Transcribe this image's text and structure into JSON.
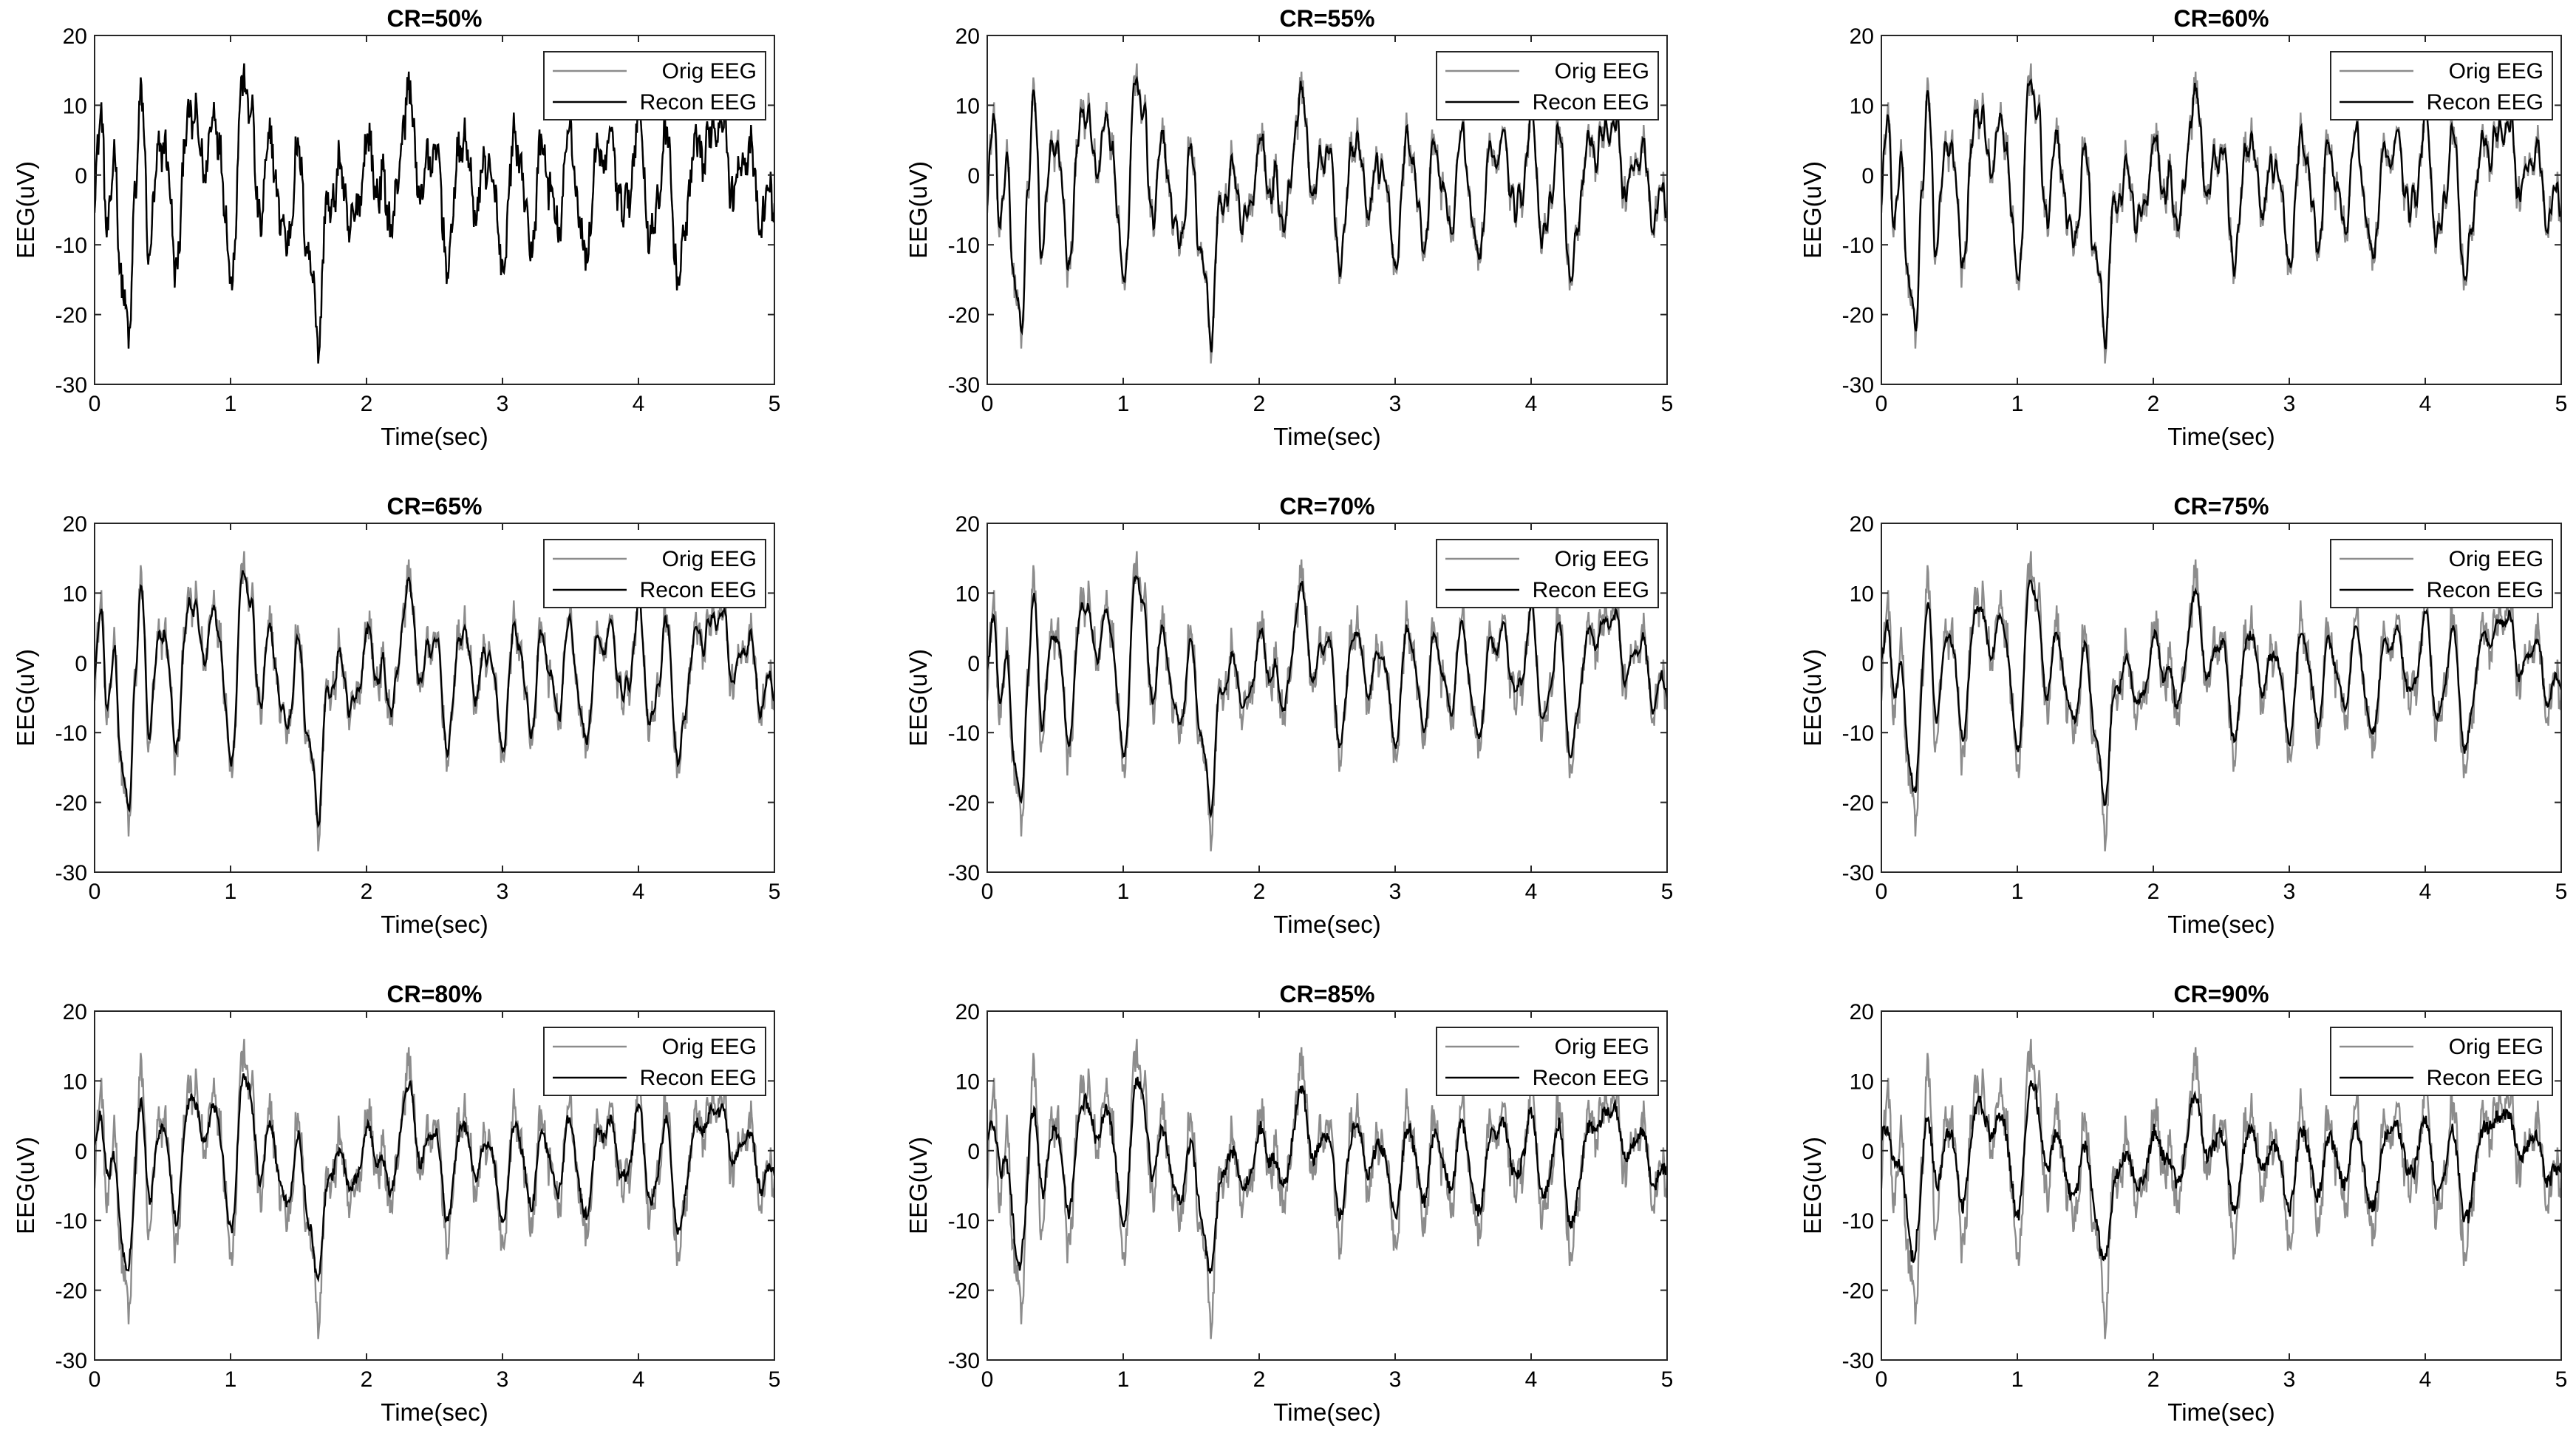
{
  "chart_data": [
    {
      "type": "line",
      "title": "CR=50%",
      "xlabel": "Time(sec)",
      "ylabel": "EEG(uV)",
      "xlim": [
        0,
        5
      ],
      "ylim": [
        -30,
        20
      ],
      "xticks": [
        "0",
        "1",
        "2",
        "3",
        "4",
        "5"
      ],
      "yticks": [
        "20",
        "10",
        "0",
        "-10",
        "-20",
        "-30"
      ],
      "legend": "top-right",
      "series": [
        {
          "name": "Orig EEG"
        },
        {
          "name": "Recon EEG"
        }
      ]
    },
    {
      "type": "line",
      "title": "CR=55%",
      "xlabel": "Time(sec)",
      "ylabel": "EEG(uV)",
      "xlim": [
        0,
        5
      ],
      "ylim": [
        -30,
        20
      ],
      "xticks": [
        "0",
        "1",
        "2",
        "3",
        "4",
        "5"
      ],
      "yticks": [
        "20",
        "10",
        "0",
        "-10",
        "-20",
        "-30"
      ],
      "legend": "top-right",
      "series": [
        {
          "name": "Orig EEG"
        },
        {
          "name": "Recon EEG"
        }
      ]
    },
    {
      "type": "line",
      "title": "CR=60%",
      "xlabel": "Time(sec)",
      "ylabel": "EEG(uV)",
      "xlim": [
        0,
        5
      ],
      "ylim": [
        -30,
        20
      ],
      "xticks": [
        "0",
        "1",
        "2",
        "3",
        "4",
        "5"
      ],
      "yticks": [
        "20",
        "10",
        "0",
        "-10",
        "-20",
        "-30"
      ],
      "legend": "top-right",
      "series": [
        {
          "name": "Orig EEG"
        },
        {
          "name": "Recon EEG"
        }
      ]
    },
    {
      "type": "line",
      "title": "CR=65%",
      "xlabel": "Time(sec)",
      "ylabel": "EEG(uV)",
      "xlim": [
        0,
        5
      ],
      "ylim": [
        -30,
        20
      ],
      "xticks": [
        "0",
        "1",
        "2",
        "3",
        "4",
        "5"
      ],
      "yticks": [
        "20",
        "10",
        "0",
        "-10",
        "-20",
        "-30"
      ],
      "legend": "top-right",
      "series": [
        {
          "name": "Orig EEG"
        },
        {
          "name": "Recon EEG"
        }
      ]
    },
    {
      "type": "line",
      "title": "CR=70%",
      "xlabel": "Time(sec)",
      "ylabel": "EEG(uV)",
      "xlim": [
        0,
        5
      ],
      "ylim": [
        -30,
        20
      ],
      "xticks": [
        "0",
        "1",
        "2",
        "3",
        "4",
        "5"
      ],
      "yticks": [
        "20",
        "10",
        "0",
        "-10",
        "-20",
        "-30"
      ],
      "legend": "top-right",
      "series": [
        {
          "name": "Orig EEG"
        },
        {
          "name": "Recon EEG"
        }
      ]
    },
    {
      "type": "line",
      "title": "CR=75%",
      "xlabel": "Time(sec)",
      "ylabel": "EEG(uV)",
      "xlim": [
        0,
        5
      ],
      "ylim": [
        -30,
        20
      ],
      "xticks": [
        "0",
        "1",
        "2",
        "3",
        "4",
        "5"
      ],
      "yticks": [
        "20",
        "10",
        "0",
        "-10",
        "-20",
        "-30"
      ],
      "legend": "top-right",
      "series": [
        {
          "name": "Orig EEG"
        },
        {
          "name": "Recon EEG"
        }
      ]
    },
    {
      "type": "line",
      "title": "CR=80%",
      "xlabel": "Time(sec)",
      "ylabel": "EEG(uV)",
      "xlim": [
        0,
        5
      ],
      "ylim": [
        -30,
        20
      ],
      "xticks": [
        "0",
        "1",
        "2",
        "3",
        "4",
        "5"
      ],
      "yticks": [
        "20",
        "10",
        "0",
        "-10",
        "-20",
        "-30"
      ],
      "legend": "top-right",
      "series": [
        {
          "name": "Orig EEG"
        },
        {
          "name": "Recon EEG"
        }
      ]
    },
    {
      "type": "line",
      "title": "CR=85%",
      "xlabel": "Time(sec)",
      "ylabel": "EEG(uV)",
      "xlim": [
        0,
        5
      ],
      "ylim": [
        -30,
        20
      ],
      "xticks": [
        "0",
        "1",
        "2",
        "3",
        "4",
        "5"
      ],
      "yticks": [
        "20",
        "10",
        "0",
        "-10",
        "-20",
        "-30"
      ],
      "legend": "top-right",
      "series": [
        {
          "name": "Orig EEG"
        },
        {
          "name": "Recon EEG"
        }
      ]
    },
    {
      "type": "line",
      "title": "CR=90%",
      "xlabel": "Time(sec)",
      "ylabel": "EEG(uV)",
      "xlim": [
        0,
        5
      ],
      "ylim": [
        -30,
        20
      ],
      "xticks": [
        "0",
        "1",
        "2",
        "3",
        "4",
        "5"
      ],
      "yticks": [
        "20",
        "10",
        "0",
        "-10",
        "-20",
        "-30"
      ],
      "legend": "top-right",
      "series": [
        {
          "name": "Orig EEG"
        },
        {
          "name": "Recon EEG"
        }
      ]
    }
  ],
  "signal_shape": {
    "description_free_anchor_values_note": "",
    "anchor_t": [
      0,
      0.05,
      0.1,
      0.15,
      0.2,
      0.25,
      0.3,
      0.35,
      0.4,
      0.5,
      0.6,
      0.7,
      0.8,
      0.9,
      1.0,
      1.1,
      1.15,
      1.2,
      1.3,
      1.4,
      1.5,
      1.6,
      1.65,
      1.7,
      1.8,
      1.9,
      2.0,
      2.1,
      2.2,
      2.3,
      2.4,
      2.5,
      2.6,
      2.7,
      2.8,
      2.9,
      3.0,
      3.1,
      3.2,
      3.3,
      3.4,
      3.5,
      3.6,
      3.7,
      3.8,
      3.9,
      4.0,
      4.1,
      4.2,
      4.3,
      4.4,
      4.5,
      4.6,
      4.7,
      4.8,
      4.9,
      5.0
    ],
    "anchor_v": [
      -3,
      8,
      -8,
      2,
      -15,
      -25,
      0,
      10,
      -10,
      6,
      -12,
      10,
      2,
      8,
      -14,
      14,
      10,
      -6,
      4,
      -10,
      2,
      -15,
      -23,
      -6,
      0,
      -8,
      4,
      -2,
      -6,
      12,
      -2,
      4,
      -12,
      6,
      -4,
      2,
      -13,
      6,
      -10,
      4,
      -8,
      6,
      -12,
      2,
      4,
      -6,
      8,
      -10,
      6,
      -15,
      2,
      4,
      9,
      -2,
      4,
      -6,
      -2
    ]
  },
  "recon_noise_level": [
    0.0,
    0.05,
    0.1,
    0.18,
    0.28,
    0.38,
    0.5,
    0.6,
    0.72
  ],
  "colors": {
    "orig": "#8c8c8c",
    "recon": "#000000",
    "axes": "#262626",
    "background": "#ffffff"
  }
}
